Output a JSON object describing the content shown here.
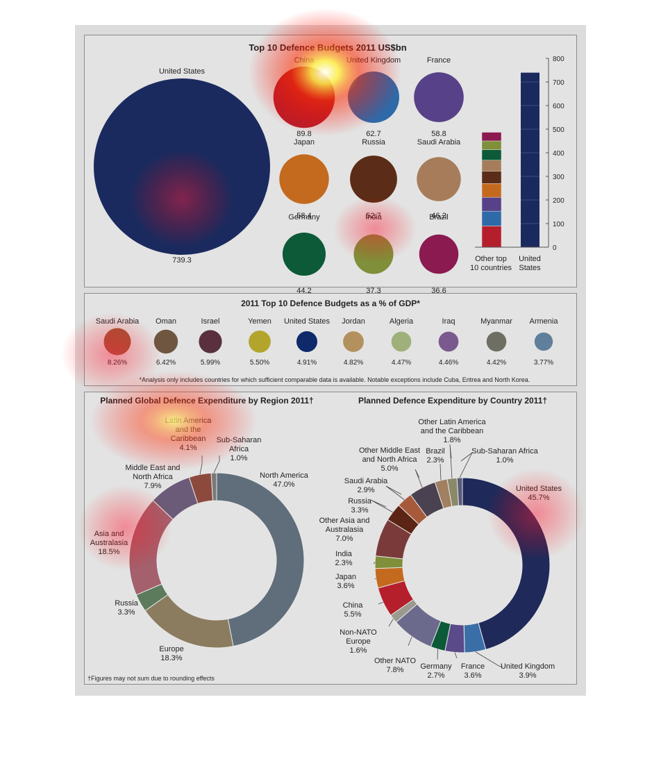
{
  "chart_data": [
    {
      "type": "bubble",
      "title": "Top 10 Defence Budgets 2011 US$bn",
      "categories": [
        "United States",
        "China",
        "United Kingdom",
        "France",
        "Japan",
        "Russia",
        "Saudi Arabia",
        "Germany",
        "India",
        "Brazil"
      ],
      "values": [
        739.3,
        89.8,
        62.7,
        58.8,
        58.4,
        52.7,
        46.2,
        44.2,
        37.3,
        36.6
      ],
      "value_labels": [
        "739.3",
        "89.8",
        "62.7",
        "58.8",
        "58.4",
        "52.7",
        "46.2",
        "44.2",
        "37.3",
        "36.6"
      ],
      "colors": [
        "#1b2a5e",
        "#b51f2b",
        "#2f6aa8",
        "#574188",
        "#c46a1f",
        "#5b2c17",
        "#a67c5a",
        "#0c5a37",
        "#7f8f3a",
        "#8a1a4f"
      ]
    },
    {
      "type": "bar",
      "title": "Top 10 Defence Budgets 2011 US$bn",
      "categories": [
        "Other top 10 countries",
        "United States"
      ],
      "category_lines": [
        [
          "Other top",
          "10 countries"
        ],
        [
          "United",
          "States"
        ]
      ],
      "stacked_series": [
        {
          "name": "China",
          "value": 89.8,
          "color": "#b51f2b"
        },
        {
          "name": "United Kingdom",
          "value": 62.7,
          "color": "#2f6aa8"
        },
        {
          "name": "France",
          "value": 58.8,
          "color": "#574188"
        },
        {
          "name": "Japan",
          "value": 58.4,
          "color": "#c46a1f"
        },
        {
          "name": "Russia",
          "value": 52.7,
          "color": "#5b2c17"
        },
        {
          "name": "Saudi Arabia",
          "value": 46.2,
          "color": "#a67c5a"
        },
        {
          "name": "Germany",
          "value": 44.2,
          "color": "#0c5a37"
        },
        {
          "name": "India",
          "value": 37.3,
          "color": "#7f8f3a"
        },
        {
          "name": "Brazil",
          "value": 36.6,
          "color": "#8a1a4f"
        }
      ],
      "us_value": 739.3,
      "us_color": "#1b2a5e",
      "ylim": [
        0,
        800
      ],
      "yticks": [
        0,
        100,
        200,
        300,
        400,
        500,
        600,
        700,
        800
      ]
    },
    {
      "type": "bubble",
      "title": "2011 Top 10 Defence Budgets as a % of GDP*",
      "categories": [
        "Saudi Arabia",
        "Oman",
        "Israel",
        "Yemen",
        "United States",
        "Jordan",
        "Algeria",
        "Iraq",
        "Myanmar",
        "Armenia"
      ],
      "values": [
        8.26,
        6.42,
        5.99,
        5.5,
        4.91,
        4.82,
        4.47,
        4.46,
        4.42,
        3.77
      ],
      "value_labels": [
        "8.26%",
        "6.42%",
        "5.99%",
        "5.50%",
        "4.91%",
        "4.82%",
        "4.47%",
        "4.46%",
        "4.42%",
        "3.77%"
      ],
      "colors": [
        "#a0583a",
        "#6e5640",
        "#5a2f3e",
        "#b3a52c",
        "#0f2a6a",
        "#b3915e",
        "#9fb07a",
        "#7a5a8e",
        "#6e6e62",
        "#5f7f9a"
      ],
      "footnote": "*Analysis only includes countries for which sufficient comparable data is available. Notable exceptions include Cuba, Eritrea and North Korea."
    },
    {
      "type": "pie",
      "title": "Planned Global Defence Expenditure by Region 2011†",
      "slices": [
        {
          "label": [
            "North America",
            "47.0%"
          ],
          "value": 47.0,
          "color": "#5f6e7a"
        },
        {
          "label": [
            "Europe",
            "18.3%"
          ],
          "value": 18.3,
          "color": "#8c7c5f"
        },
        {
          "label": [
            "Russia",
            "3.3%"
          ],
          "value": 3.3,
          "color": "#5c7a5c"
        },
        {
          "label": [
            "Asia and",
            "Australasia",
            "18.5%"
          ],
          "value": 18.5,
          "color": "#a4606c"
        },
        {
          "label": [
            "Middle East and",
            "North Africa",
            "7.9%"
          ],
          "value": 7.9,
          "color": "#6c5b78"
        },
        {
          "label": [
            "Latin America",
            "and the",
            "Caribbean",
            "4.1%"
          ],
          "value": 4.1,
          "color": "#8c4a3c"
        },
        {
          "label": [
            "Sub-Saharan",
            "Africa",
            "1.0%"
          ],
          "value": 1.0,
          "color": "#7a7a7a"
        }
      ],
      "footnote": "†Figures may not sum due to rounding effects"
    },
    {
      "type": "pie",
      "title": "Planned Defence Expenditure by Country 2011†",
      "slices": [
        {
          "label": [
            "United States",
            "45.7%"
          ],
          "value": 45.7,
          "color": "#1f2a5a"
        },
        {
          "label": [
            "United Kingdom",
            "3.9%"
          ],
          "value": 3.9,
          "color": "#3a6ea6"
        },
        {
          "label": [
            "France",
            "3.6%"
          ],
          "value": 3.6,
          "color": "#5a4a8a"
        },
        {
          "label": [
            "Germany",
            "2.7%"
          ],
          "value": 2.7,
          "color": "#0c5a37"
        },
        {
          "label": [
            "Other NATO",
            "7.8%"
          ],
          "value": 7.8,
          "color": "#6c6a8c"
        },
        {
          "label": [
            "Non-NATO",
            "Europe",
            "1.6%"
          ],
          "value": 1.6,
          "color": "#9a9a90"
        },
        {
          "label": [
            "China",
            "5.5%"
          ],
          "value": 5.5,
          "color": "#b51f2b"
        },
        {
          "label": [
            "Japan",
            "3.6%"
          ],
          "value": 3.6,
          "color": "#c46a1f"
        },
        {
          "label": [
            "India",
            "2.3%"
          ],
          "value": 2.3,
          "color": "#7f8f3a"
        },
        {
          "label": [
            "Other Asia and",
            "Australasia",
            "7.0%"
          ],
          "value": 7.0,
          "color": "#7a3a3a"
        },
        {
          "label": [
            "Russia",
            "3.3%"
          ],
          "value": 3.3,
          "color": "#5b2414"
        },
        {
          "label": [
            "Saudi Arabia",
            "2.9%"
          ],
          "value": 2.9,
          "color": "#a65a3a"
        },
        {
          "label": [
            "Other Middle East",
            "and North Africa",
            "5.0%"
          ],
          "value": 5.0,
          "color": "#4a4250"
        },
        {
          "label": [
            "Brazil",
            "2.3%"
          ],
          "value": 2.3,
          "color": "#a08060"
        },
        {
          "label": [
            "Other Latin America",
            "and the Caribbean",
            "1.8%"
          ],
          "value": 1.8,
          "color": "#8a8a6a"
        },
        {
          "label": [
            "Sub-Saharan Africa",
            "1.0%"
          ],
          "value": 1.0,
          "color": "#5a5a7a"
        }
      ]
    }
  ]
}
